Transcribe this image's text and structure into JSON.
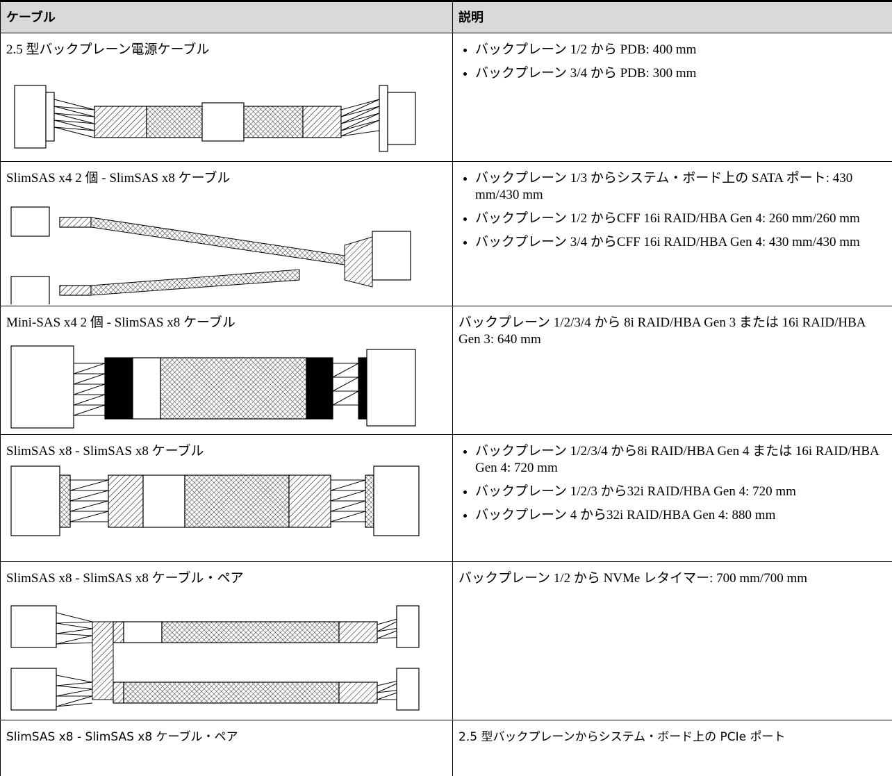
{
  "table": {
    "headers": [
      "ケーブル",
      "説明"
    ],
    "rows": [
      {
        "cable": "2.5 型バックプレーン電源ケーブル",
        "description": [
          "バックプレーン 1/2 から PDB: 400 mm",
          "バックプレーン 3/4 から PDB: 300 mm"
        ]
      },
      {
        "cable": "SlimSAS x4 2 個 - SlimSAS x8 ケーブル",
        "description": [
          "バックプレーン 1/3 からシステム・ボード上の SATA ポート: 430 mm/430 mm",
          "バックプレーン 1/2 からCFF 16i RAID/HBA Gen 4: 260 mm/260 mm",
          "バックプレーン 3/4 からCFF 16i RAID/HBA Gen 4: 430 mm/430 mm"
        ]
      },
      {
        "cable": "Mini-SAS x4 2 個 - SlimSAS x8 ケーブル",
        "description": "バックプレーン 1/2/3/4 から 8i RAID/HBA Gen 3 または 16i RAID/HBA Gen 3: 640 mm"
      },
      {
        "cable": "SlimSAS x8 - SlimSAS x8 ケーブル",
        "description": [
          "バックプレーン 1/2/3/4 から8i RAID/HBA Gen 4 または 16i RAID/HBA Gen 4: 720 mm",
          "バックプレーン 1/2/3 から32i RAID/HBA Gen 4: 720 mm",
          "バックプレーン 4 から32i RAID/HBA Gen 4: 880 mm"
        ]
      },
      {
        "cable": "SlimSAS x8 - SlimSAS x8 ケーブル・ペア",
        "description": "バックプレーン 1/2 から NVMe レタイマー: 700 mm/700 mm"
      },
      {
        "cable": "SlimSAS x8 - SlimSAS x8 ケーブル・ペア",
        "description": "2.5 型バックプレーンからシステム・ボード上の PCIe ポート"
      }
    ]
  }
}
